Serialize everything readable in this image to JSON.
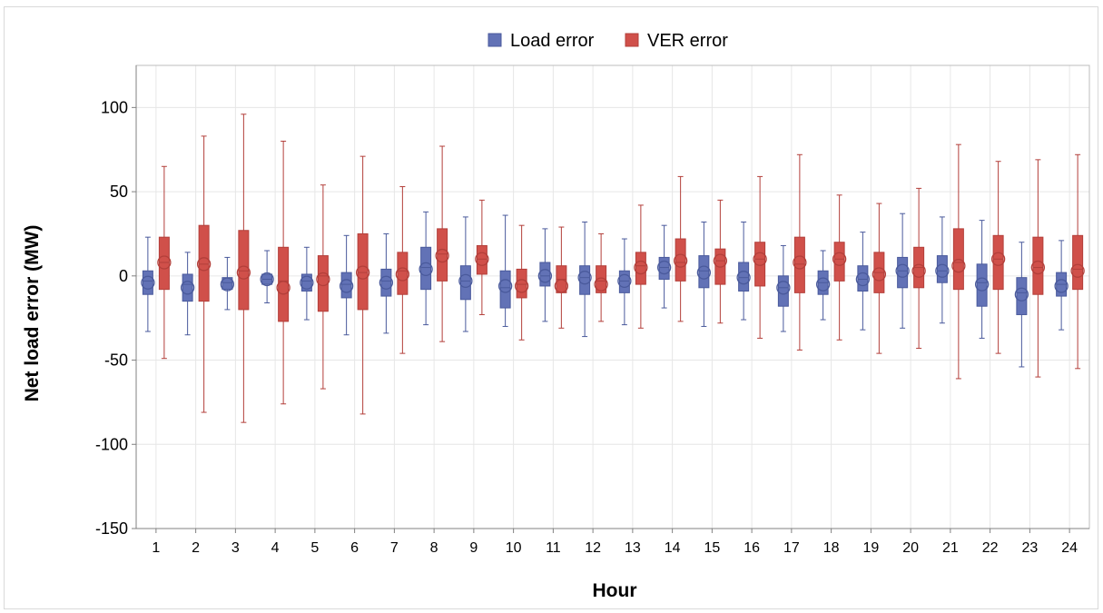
{
  "chart_data": {
    "type": "boxplot",
    "xlabel": "Hour",
    "ylabel": "Net load error (MW)",
    "ylim": [
      -150,
      125
    ],
    "yticks": [
      100,
      50,
      0,
      -50,
      -100,
      -150
    ],
    "ytick_labels": [
      "100",
      "50",
      "0",
      "-50",
      "-100",
      "-150"
    ],
    "categories": [
      "1",
      "2",
      "3",
      "4",
      "5",
      "6",
      "7",
      "8",
      "9",
      "10",
      "11",
      "12",
      "13",
      "14",
      "15",
      "16",
      "17",
      "18",
      "19",
      "20",
      "21",
      "22",
      "23",
      "24"
    ],
    "grid": true,
    "legend_position": "top-center",
    "series": [
      {
        "name": "Load error",
        "color": "#6272b6",
        "stroke": "#4a5a9c",
        "boxes": [
          {
            "min": -33,
            "q1": -11,
            "median": -3,
            "q3": 3,
            "max": 23,
            "mean": -4
          },
          {
            "min": -35,
            "q1": -15,
            "median": -5,
            "q3": 1,
            "max": 14,
            "mean": -7
          },
          {
            "min": -20,
            "q1": -8,
            "median": -4,
            "q3": -1,
            "max": 11,
            "mean": -5
          },
          {
            "min": -16,
            "q1": -5,
            "median": -2,
            "q3": 1,
            "max": 15,
            "mean": -2
          },
          {
            "min": -26,
            "q1": -9,
            "median": -3,
            "q3": 1,
            "max": 17,
            "mean": -4
          },
          {
            "min": -35,
            "q1": -13,
            "median": -5,
            "q3": 2,
            "max": 24,
            "mean": -6
          },
          {
            "min": -34,
            "q1": -12,
            "median": -3,
            "q3": 4,
            "max": 25,
            "mean": -4
          },
          {
            "min": -29,
            "q1": -8,
            "median": 5,
            "q3": 17,
            "max": 38,
            "mean": 4
          },
          {
            "min": -33,
            "q1": -14,
            "median": -3,
            "q3": 6,
            "max": 35,
            "mean": -3
          },
          {
            "min": -30,
            "q1": -19,
            "median": -7,
            "q3": 3,
            "max": 36,
            "mean": -6
          },
          {
            "min": -27,
            "q1": -6,
            "median": 0,
            "q3": 8,
            "max": 28,
            "mean": 0
          },
          {
            "min": -36,
            "q1": -11,
            "median": -1,
            "q3": 6,
            "max": 32,
            "mean": -1
          },
          {
            "min": -29,
            "q1": -10,
            "median": -3,
            "q3": 3,
            "max": 22,
            "mean": -3
          },
          {
            "min": -19,
            "q1": -2,
            "median": 5,
            "q3": 11,
            "max": 30,
            "mean": 5
          },
          {
            "min": -30,
            "q1": -7,
            "median": 3,
            "q3": 12,
            "max": 32,
            "mean": 2
          },
          {
            "min": -26,
            "q1": -9,
            "median": -1,
            "q3": 8,
            "max": 32,
            "mean": -1
          },
          {
            "min": -33,
            "q1": -18,
            "median": -7,
            "q3": 0,
            "max": 18,
            "mean": -7
          },
          {
            "min": -26,
            "q1": -11,
            "median": -4,
            "q3": 3,
            "max": 15,
            "mean": -5
          },
          {
            "min": -32,
            "q1": -9,
            "median": -2,
            "q3": 6,
            "max": 26,
            "mean": -2
          },
          {
            "min": -31,
            "q1": -7,
            "median": 3,
            "q3": 11,
            "max": 37,
            "mean": 3
          },
          {
            "min": -28,
            "q1": -4,
            "median": 3,
            "q3": 12,
            "max": 35,
            "mean": 3
          },
          {
            "min": -37,
            "q1": -18,
            "median": -4,
            "q3": 7,
            "max": 33,
            "mean": -5
          },
          {
            "min": -54,
            "q1": -23,
            "median": -10,
            "q3": -1,
            "max": 20,
            "mean": -11
          },
          {
            "min": -32,
            "q1": -12,
            "median": -5,
            "q3": 2,
            "max": 21,
            "mean": -6
          }
        ]
      },
      {
        "name": "VER error",
        "color": "#d0504a",
        "stroke": "#b33f3a",
        "boxes": [
          {
            "min": -49,
            "q1": -8,
            "median": 8,
            "q3": 23,
            "max": 65,
            "mean": 8
          },
          {
            "min": -81,
            "q1": -15,
            "median": 7,
            "q3": 30,
            "max": 83,
            "mean": 7
          },
          {
            "min": -87,
            "q1": -20,
            "median": 3,
            "q3": 27,
            "max": 96,
            "mean": 2
          },
          {
            "min": -76,
            "q1": -27,
            "median": -3,
            "q3": 17,
            "max": 80,
            "mean": -7
          },
          {
            "min": -67,
            "q1": -21,
            "median": 0,
            "q3": 12,
            "max": 54,
            "mean": -2
          },
          {
            "min": -82,
            "q1": -20,
            "median": 2,
            "q3": 25,
            "max": 71,
            "mean": 2
          },
          {
            "min": -46,
            "q1": -11,
            "median": 3,
            "q3": 14,
            "max": 53,
            "mean": 1
          },
          {
            "min": -39,
            "q1": -3,
            "median": 13,
            "q3": 28,
            "max": 77,
            "mean": 12
          },
          {
            "min": -23,
            "q1": 1,
            "median": 10,
            "q3": 18,
            "max": 45,
            "mean": 10
          },
          {
            "min": -38,
            "q1": -13,
            "median": -5,
            "q3": 4,
            "max": 30,
            "mean": -6
          },
          {
            "min": -31,
            "q1": -10,
            "median": -2,
            "q3": 6,
            "max": 29,
            "mean": -6
          },
          {
            "min": -27,
            "q1": -10,
            "median": -3,
            "q3": 6,
            "max": 25,
            "mean": -5
          },
          {
            "min": -31,
            "q1": -5,
            "median": 6,
            "q3": 14,
            "max": 42,
            "mean": 5
          },
          {
            "min": -27,
            "q1": -3,
            "median": 8,
            "q3": 22,
            "max": 59,
            "mean": 9
          },
          {
            "min": -28,
            "q1": -5,
            "median": 9,
            "q3": 16,
            "max": 45,
            "mean": 9
          },
          {
            "min": -37,
            "q1": -6,
            "median": 10,
            "q3": 20,
            "max": 59,
            "mean": 10
          },
          {
            "min": -44,
            "q1": -10,
            "median": 7,
            "q3": 23,
            "max": 72,
            "mean": 8
          },
          {
            "min": -38,
            "q1": -3,
            "median": 10,
            "q3": 20,
            "max": 48,
            "mean": 10
          },
          {
            "min": -46,
            "q1": -10,
            "median": 2,
            "q3": 14,
            "max": 43,
            "mean": 1
          },
          {
            "min": -43,
            "q1": -7,
            "median": 5,
            "q3": 17,
            "max": 52,
            "mean": 3
          },
          {
            "min": -61,
            "q1": -8,
            "median": 8,
            "q3": 28,
            "max": 78,
            "mean": 6
          },
          {
            "min": -46,
            "q1": -8,
            "median": 10,
            "q3": 24,
            "max": 68,
            "mean": 10
          },
          {
            "min": -60,
            "q1": -11,
            "median": 5,
            "q3": 23,
            "max": 69,
            "mean": 5
          },
          {
            "min": -55,
            "q1": -8,
            "median": 4,
            "q3": 24,
            "max": 72,
            "mean": 3
          }
        ]
      }
    ]
  }
}
